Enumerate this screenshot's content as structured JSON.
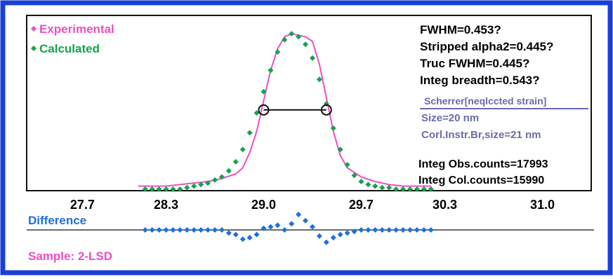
{
  "chart_data": {
    "type": "scatter",
    "xlim": [
      27.3,
      31.35
    ],
    "ylim": [
      -0.03,
      1.12
    ],
    "x_ticks": [
      "27.7",
      "28.3",
      "29.0",
      "29.7",
      "30.3",
      "31.0"
    ],
    "x_tick_values": [
      27.7,
      28.3,
      29.0,
      29.7,
      30.3,
      31.0
    ],
    "legend_position": "top-left",
    "colors": {
      "frame": "#1a3fd6",
      "experimental": "#ec4fc2",
      "calculated": "#15a34a",
      "difference": "#1f6fe0",
      "annotation": "#6a6ab0",
      "baseline": "#6b6b6b"
    },
    "legend": {
      "experimental": "Experimental",
      "calculated": "Calculated"
    },
    "stats": [
      "FWHM=0.453?",
      "Stripped alpha2=0.445?",
      "Truc FWHM=0.445?",
      "Integ breadth=0.543?"
    ],
    "scherrer": {
      "heading": "Scherrer[neqlccted strain]",
      "size": "Size=20 nm",
      "corrected": "Corl.Instr.Br,size=21 nm"
    },
    "counts": [
      "Integ Obs.counts=17993",
      "Integ Col.counts=15990"
    ],
    "difference_label": "Difference",
    "sample_label": "Sample: 2-LSD",
    "fwhm_marker": {
      "x_left": 29.0,
      "x_right": 29.45,
      "y": 0.5
    },
    "series": [
      {
        "name": "Experimental",
        "x": [
          28.1,
          28.2,
          28.3,
          28.4,
          28.5,
          28.6,
          28.7,
          28.8,
          28.85,
          28.9,
          28.95,
          29.0,
          29.05,
          29.1,
          29.15,
          29.2,
          29.25,
          29.3,
          29.35,
          29.4,
          29.45,
          29.5,
          29.55,
          29.6,
          29.7,
          29.8,
          29.9,
          30.0,
          30.1,
          30.2
        ],
        "y": [
          0.0,
          0.0,
          0.0,
          0.01,
          0.02,
          0.03,
          0.05,
          0.08,
          0.12,
          0.22,
          0.36,
          0.56,
          0.76,
          0.9,
          0.98,
          1.0,
          0.99,
          0.98,
          0.95,
          0.8,
          0.58,
          0.36,
          0.2,
          0.12,
          0.06,
          0.03,
          0.01,
          0.0,
          0.0,
          0.0
        ]
      },
      {
        "name": "Calculated",
        "x": [
          28.15,
          28.2,
          28.25,
          28.3,
          28.35,
          28.4,
          28.45,
          28.5,
          28.55,
          28.6,
          28.65,
          28.7,
          28.75,
          28.8,
          28.85,
          28.9,
          28.95,
          29.0,
          29.05,
          29.1,
          29.15,
          29.2,
          29.25,
          29.3,
          29.35,
          29.4,
          29.45,
          29.5,
          29.55,
          29.6,
          29.65,
          29.7,
          29.75,
          29.8,
          29.85,
          29.9,
          29.95,
          30.0,
          30.05,
          30.1,
          30.15,
          30.2
        ],
        "y": [
          -0.02,
          -0.02,
          -0.02,
          -0.02,
          -0.02,
          -0.02,
          -0.01,
          0.0,
          0.01,
          0.02,
          0.04,
          0.06,
          0.1,
          0.16,
          0.24,
          0.35,
          0.48,
          0.62,
          0.76,
          0.88,
          0.96,
          1.0,
          0.98,
          0.93,
          0.84,
          0.7,
          0.54,
          0.38,
          0.24,
          0.14,
          0.07,
          0.03,
          0.01,
          0.0,
          -0.01,
          -0.01,
          -0.02,
          -0.02,
          -0.02,
          -0.02,
          -0.02,
          -0.02
        ]
      },
      {
        "name": "Difference",
        "x": [
          28.15,
          28.2,
          28.25,
          28.3,
          28.35,
          28.4,
          28.45,
          28.5,
          28.55,
          28.6,
          28.65,
          28.7,
          28.75,
          28.8,
          28.85,
          28.9,
          28.95,
          29.0,
          29.05,
          29.1,
          29.15,
          29.2,
          29.25,
          29.3,
          29.35,
          29.4,
          29.45,
          29.5,
          29.55,
          29.6,
          29.65,
          29.7,
          29.75,
          29.8,
          29.85,
          29.9,
          29.95,
          30.0,
          30.05,
          30.1,
          30.15,
          30.2
        ],
        "y": [
          0.0,
          0.0,
          0.0,
          0.0,
          0.0,
          0.0,
          0.0,
          0.0,
          0.0,
          0.0,
          0.0,
          0.0,
          -0.02,
          -0.03,
          -0.06,
          -0.05,
          -0.03,
          0.01,
          0.02,
          0.03,
          0.0,
          0.04,
          0.1,
          0.06,
          0.02,
          -0.04,
          -0.08,
          -0.05,
          -0.03,
          -0.02,
          -0.01,
          0.0,
          0.0,
          0.0,
          0.0,
          0.0,
          0.0,
          0.0,
          0.0,
          0.0,
          0.0,
          0.0
        ]
      }
    ]
  }
}
